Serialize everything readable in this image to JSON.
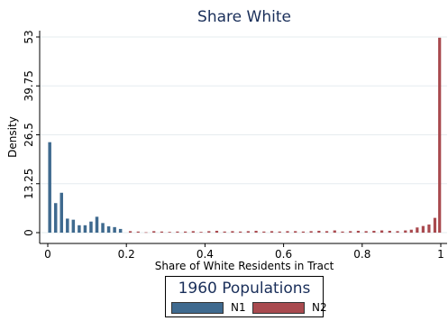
{
  "chart_data": {
    "type": "bar",
    "title": "Share White",
    "xlabel": "Share of White Residents in Tract",
    "ylabel": "Density",
    "xlim": [
      0,
      1
    ],
    "ylim": [
      0,
      53
    ],
    "x_ticks": [
      "0",
      "0.2",
      "0.4",
      "0.6",
      "0.8",
      "1"
    ],
    "y_ticks": [
      "0",
      "13.25",
      "26.5",
      "39.75",
      "53"
    ],
    "grid": true,
    "legend": {
      "title": "1960 Populations",
      "position": "bottom"
    },
    "series": [
      {
        "name": "N1",
        "color": "#3f6a8f",
        "x": [
          0.005,
          0.02,
          0.035,
          0.05,
          0.065,
          0.08,
          0.095,
          0.11,
          0.125,
          0.14,
          0.155,
          0.17,
          0.185
        ],
        "values": [
          24.5,
          8.0,
          10.8,
          3.8,
          3.5,
          2.0,
          2.0,
          3.0,
          4.3,
          2.6,
          1.7,
          1.5,
          1.0
        ]
      },
      {
        "name": "N2",
        "color": "#a94a4f",
        "x": [
          0.21,
          0.23,
          0.25,
          0.27,
          0.29,
          0.31,
          0.33,
          0.35,
          0.37,
          0.39,
          0.41,
          0.43,
          0.45,
          0.47,
          0.49,
          0.51,
          0.53,
          0.55,
          0.57,
          0.59,
          0.61,
          0.63,
          0.65,
          0.67,
          0.69,
          0.71,
          0.73,
          0.75,
          0.77,
          0.79,
          0.81,
          0.83,
          0.85,
          0.87,
          0.89,
          0.91,
          0.925,
          0.94,
          0.955,
          0.97,
          0.985,
          0.997
        ],
        "values": [
          0.4,
          0.3,
          0.1,
          0.4,
          0.3,
          0.2,
          0.3,
          0.3,
          0.4,
          0.2,
          0.4,
          0.5,
          0.3,
          0.4,
          0.3,
          0.4,
          0.5,
          0.3,
          0.4,
          0.3,
          0.4,
          0.4,
          0.3,
          0.4,
          0.5,
          0.4,
          0.6,
          0.3,
          0.4,
          0.5,
          0.4,
          0.5,
          0.6,
          0.5,
          0.4,
          0.6,
          0.8,
          1.4,
          1.8,
          2.2,
          4.0,
          52.8
        ]
      }
    ]
  }
}
